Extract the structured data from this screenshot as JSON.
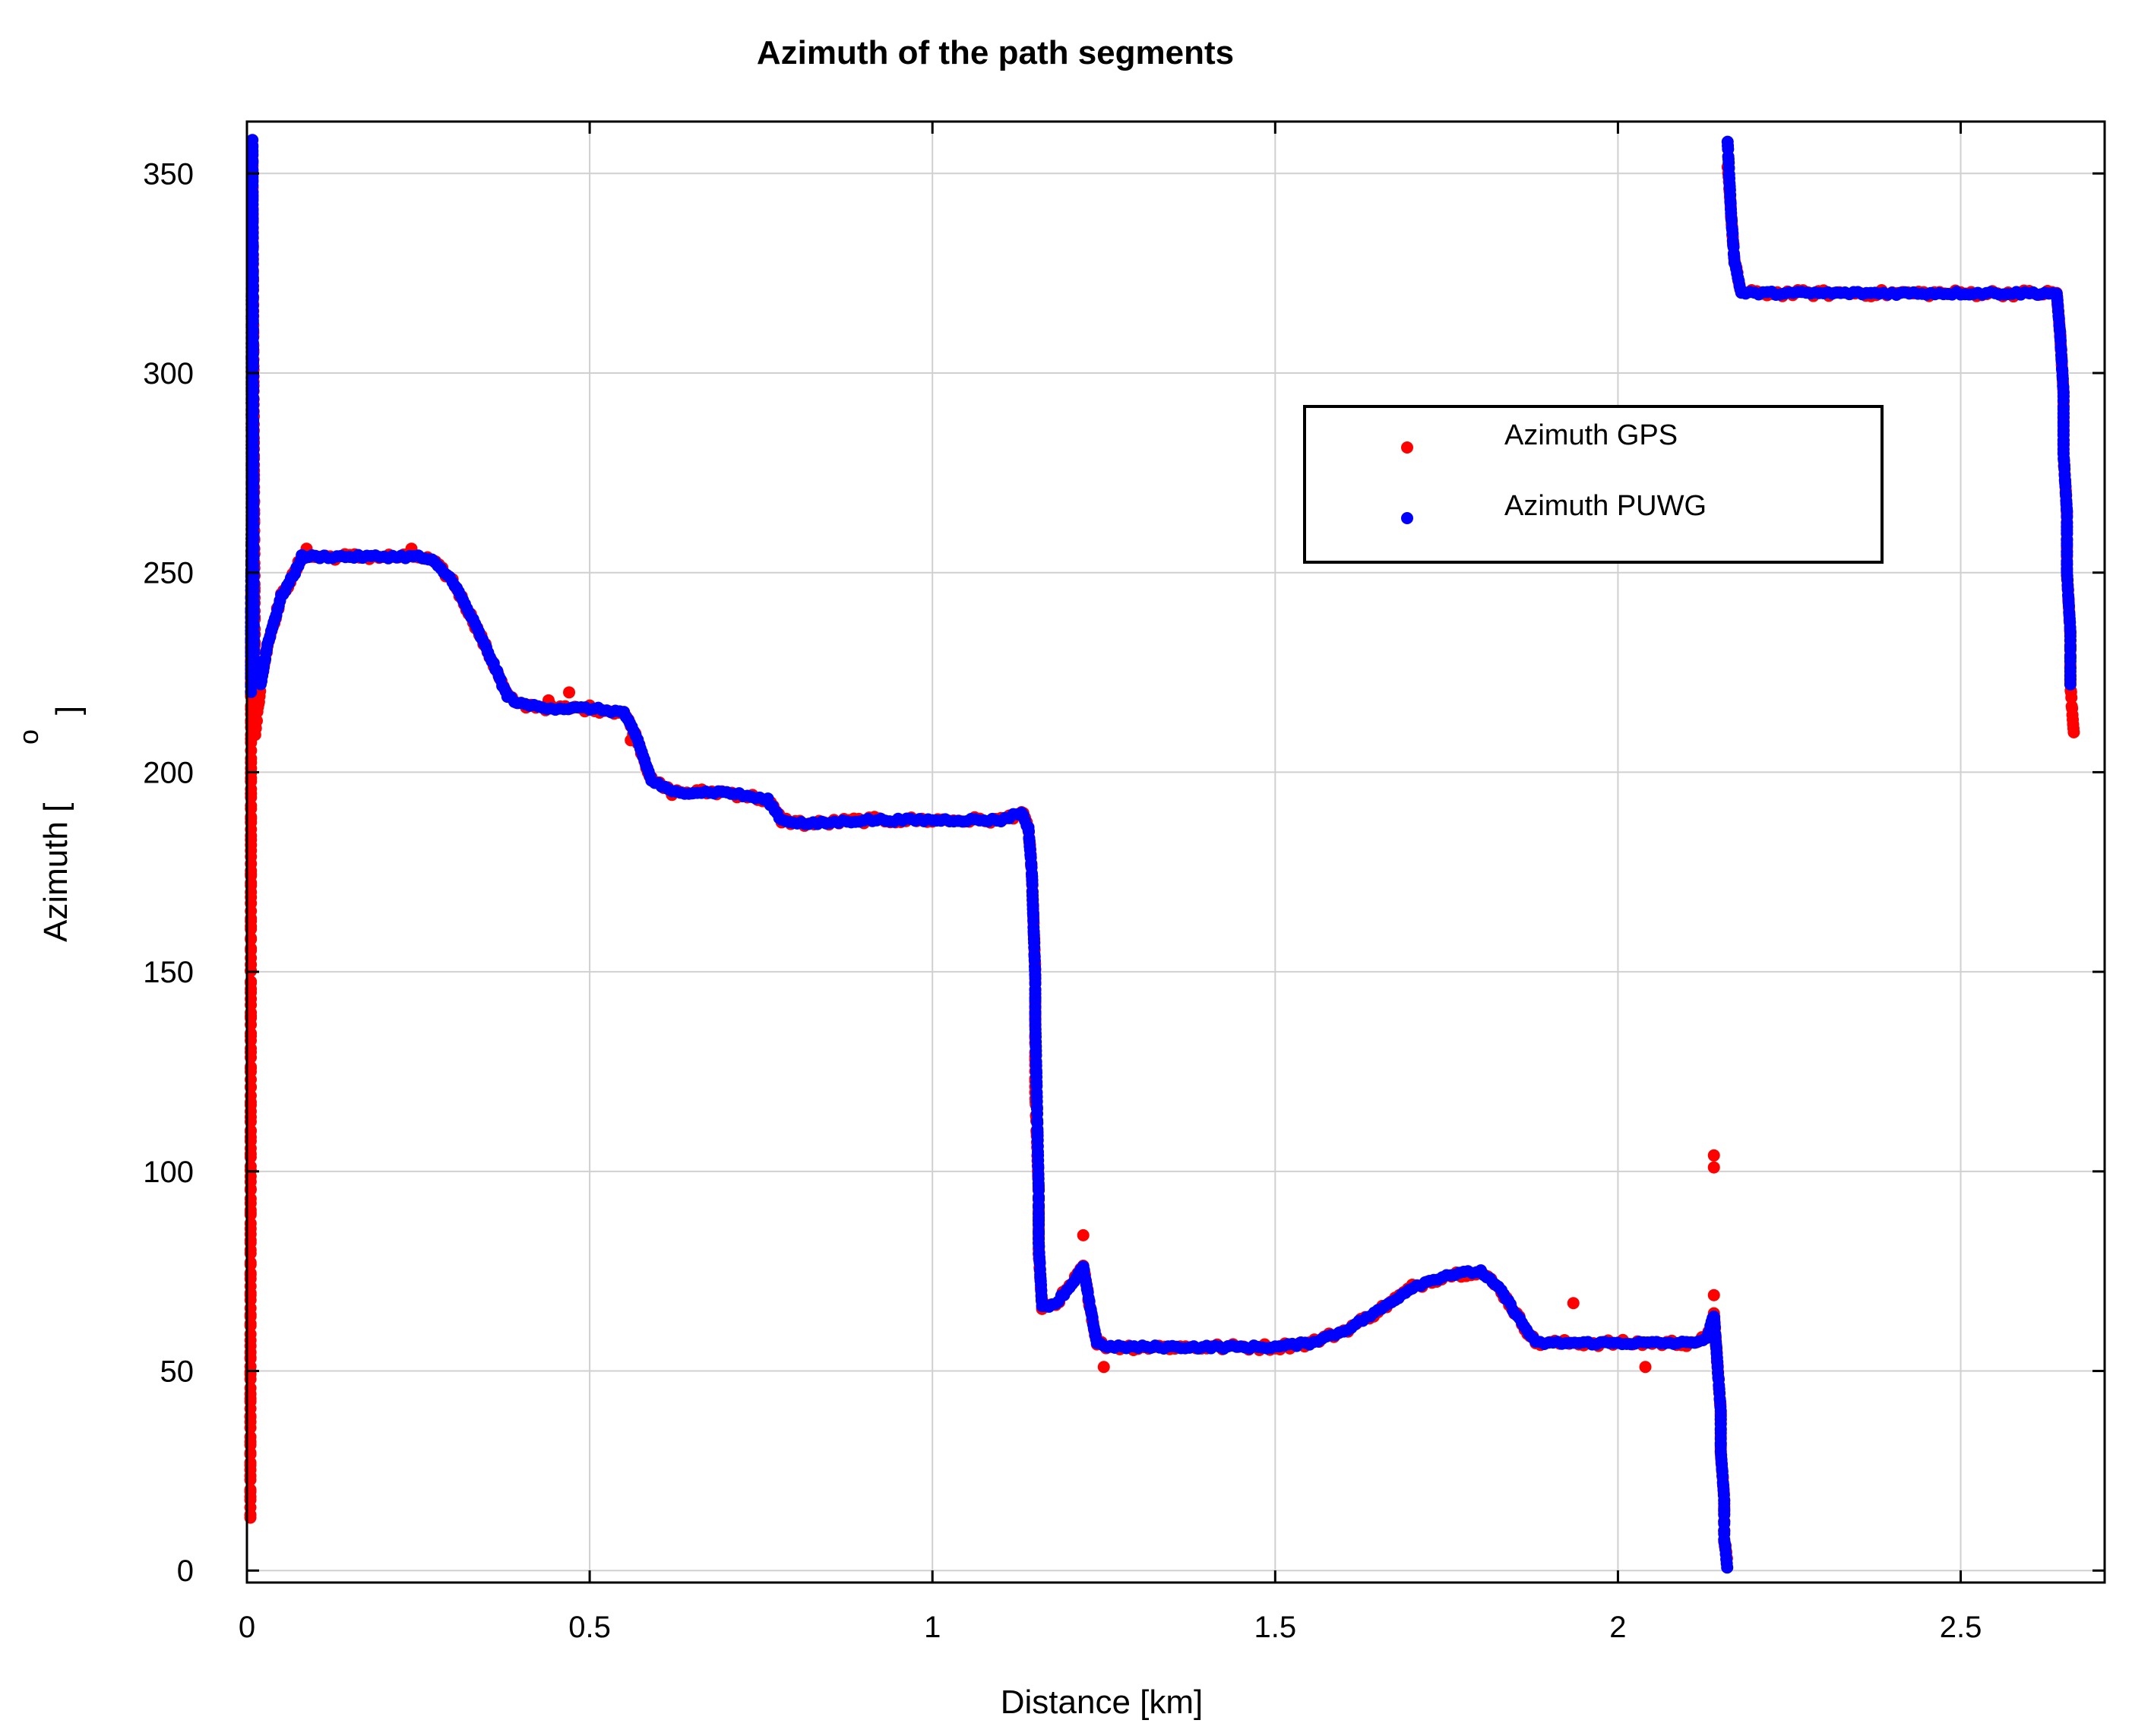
{
  "chart_data": {
    "type": "scatter",
    "title": "Azimuth of the path segments",
    "xlabel": "Distance [km]",
    "ylabel": {
      "prefix": "Azimuth [",
      "superscript": "o",
      "suffix": "]"
    },
    "xlim": [
      0,
      2.71
    ],
    "ylim": [
      -3,
      363
    ],
    "xticks": [
      0,
      0.5,
      1,
      1.5,
      2,
      2.5
    ],
    "xtick_labels": [
      "0",
      "0.5",
      "1",
      "1.5",
      "2",
      "2.5"
    ],
    "yticks": [
      0,
      50,
      100,
      150,
      200,
      250,
      300,
      350
    ],
    "ytick_labels": [
      "0",
      "50",
      "100",
      "150",
      "200",
      "250",
      "300",
      "350"
    ],
    "grid": true,
    "legend_position": "upper-right",
    "series": [
      {
        "name": "Azimuth GPS",
        "color": "#ff0000",
        "path": [
          [
            0.005,
            13
          ],
          [
            0.005,
            26
          ],
          [
            0.006,
            212
          ],
          [
            0.006,
            230
          ],
          [
            0.007,
            262
          ],
          [
            0.007,
            290
          ],
          [
            0.007,
            307
          ],
          [
            0.008,
            335
          ],
          [
            0.008,
            355
          ],
          [
            0.012,
            210
          ],
          [
            0.02,
            222
          ],
          [
            0.03,
            232
          ],
          [
            0.05,
            244
          ],
          [
            0.07,
            250
          ],
          [
            0.08,
            254
          ],
          [
            0.09,
            254
          ],
          [
            0.1,
            254
          ],
          [
            0.15,
            254
          ],
          [
            0.2,
            254
          ],
          [
            0.25,
            254
          ],
          [
            0.27,
            253
          ],
          [
            0.3,
            248
          ],
          [
            0.33,
            238
          ],
          [
            0.36,
            227
          ],
          [
            0.38,
            219
          ],
          [
            0.4,
            217
          ],
          [
            0.45,
            216
          ],
          [
            0.5,
            216
          ],
          [
            0.55,
            215
          ],
          [
            0.57,
            208
          ],
          [
            0.59,
            198
          ],
          [
            0.62,
            195
          ],
          [
            0.7,
            195
          ],
          [
            0.76,
            193
          ],
          [
            0.78,
            188
          ],
          [
            0.82,
            187
          ],
          [
            0.9,
            188
          ],
          [
            1.0,
            188
          ],
          [
            1.1,
            188
          ],
          [
            1.13,
            190
          ],
          [
            1.14,
            186
          ],
          [
            1.145,
            175
          ],
          [
            1.15,
            150
          ],
          [
            1.15,
            120
          ],
          [
            1.155,
            95
          ],
          [
            1.155,
            80
          ],
          [
            1.16,
            66
          ],
          [
            1.18,
            67
          ],
          [
            1.2,
            71
          ],
          [
            1.22,
            76
          ],
          [
            1.23,
            66
          ],
          [
            1.24,
            57
          ],
          [
            1.26,
            56
          ],
          [
            1.3,
            56
          ],
          [
            1.4,
            56
          ],
          [
            1.5,
            56
          ],
          [
            1.55,
            57
          ],
          [
            1.6,
            60
          ],
          [
            1.65,
            65
          ],
          [
            1.7,
            71
          ],
          [
            1.75,
            74
          ],
          [
            1.8,
            75
          ],
          [
            1.83,
            70
          ],
          [
            1.86,
            62
          ],
          [
            1.88,
            57
          ],
          [
            1.95,
            57
          ],
          [
            2.0,
            57
          ],
          [
            2.05,
            57
          ],
          [
            2.1,
            57
          ],
          [
            2.13,
            58
          ],
          [
            2.14,
            64
          ],
          [
            2.145,
            52
          ],
          [
            2.15,
            40
          ],
          [
            2.15,
            30
          ],
          [
            2.155,
            18
          ],
          [
            2.155,
            8
          ],
          [
            2.16,
            2
          ],
          [
            2.16,
            352
          ],
          [
            2.165,
            340
          ],
          [
            2.17,
            328
          ],
          [
            2.18,
            320
          ],
          [
            2.3,
            320
          ],
          [
            2.4,
            320
          ],
          [
            2.5,
            320
          ],
          [
            2.6,
            320
          ],
          [
            2.64,
            320
          ],
          [
            2.645,
            310
          ],
          [
            2.65,
            295
          ],
          [
            2.65,
            280
          ],
          [
            2.655,
            265
          ],
          [
            2.655,
            250
          ],
          [
            2.66,
            235
          ],
          [
            2.66,
            222
          ],
          [
            2.665,
            210
          ]
        ],
        "outliers": [
          [
            0.47,
            220
          ],
          [
            0.44,
            218
          ],
          [
            1.935,
            67
          ],
          [
            2.04,
            51
          ],
          [
            1.25,
            51
          ],
          [
            2.14,
            101
          ],
          [
            2.14,
            104
          ],
          [
            1.22,
            84
          ],
          [
            0.087,
            256
          ],
          [
            0.24,
            256
          ],
          [
            0.56,
            208
          ],
          [
            2.14,
            69
          ],
          [
            0.013,
            211
          ]
        ]
      },
      {
        "name": "Azimuth PUWG",
        "color": "#0000ff",
        "path": [
          [
            0.005,
            17
          ],
          [
            0.006,
            220
          ],
          [
            0.006,
            240
          ],
          [
            0.007,
            263
          ],
          [
            0.007,
            318
          ],
          [
            0.008,
            358
          ],
          [
            0.01,
            226
          ],
          [
            0.02,
            222
          ],
          [
            0.03,
            232
          ],
          [
            0.05,
            244
          ],
          [
            0.07,
            250
          ],
          [
            0.08,
            254
          ],
          [
            0.09,
            254
          ],
          [
            0.1,
            254
          ],
          [
            0.15,
            254
          ],
          [
            0.2,
            254
          ],
          [
            0.25,
            254
          ],
          [
            0.27,
            253
          ],
          [
            0.3,
            248
          ],
          [
            0.33,
            238
          ],
          [
            0.36,
            227
          ],
          [
            0.38,
            219
          ],
          [
            0.4,
            217
          ],
          [
            0.45,
            216
          ],
          [
            0.5,
            216
          ],
          [
            0.55,
            215
          ],
          [
            0.57,
            208
          ],
          [
            0.59,
            198
          ],
          [
            0.62,
            195
          ],
          [
            0.7,
            195
          ],
          [
            0.76,
            193
          ],
          [
            0.78,
            188
          ],
          [
            0.82,
            187
          ],
          [
            0.9,
            188
          ],
          [
            1.0,
            188
          ],
          [
            1.1,
            188
          ],
          [
            1.13,
            190
          ],
          [
            1.14,
            186
          ],
          [
            1.145,
            175
          ],
          [
            1.15,
            148
          ],
          [
            1.15,
            138
          ],
          [
            1.155,
            95
          ],
          [
            1.155,
            82
          ],
          [
            1.16,
            66
          ],
          [
            1.18,
            67
          ],
          [
            1.2,
            71
          ],
          [
            1.22,
            76
          ],
          [
            1.23,
            66
          ],
          [
            1.24,
            57
          ],
          [
            1.26,
            56
          ],
          [
            1.3,
            56
          ],
          [
            1.4,
            56
          ],
          [
            1.5,
            56
          ],
          [
            1.55,
            57
          ],
          [
            1.6,
            60
          ],
          [
            1.65,
            65
          ],
          [
            1.7,
            71
          ],
          [
            1.75,
            74
          ],
          [
            1.8,
            75
          ],
          [
            1.83,
            70
          ],
          [
            1.86,
            62
          ],
          [
            1.88,
            57
          ],
          [
            1.95,
            57
          ],
          [
            2.0,
            57
          ],
          [
            2.05,
            57
          ],
          [
            2.1,
            57
          ],
          [
            2.13,
            58
          ],
          [
            2.14,
            64
          ],
          [
            2.145,
            52
          ],
          [
            2.15,
            40
          ],
          [
            2.15,
            30
          ],
          [
            2.155,
            18
          ],
          [
            2.155,
            8
          ],
          [
            2.16,
            0
          ],
          [
            2.16,
            358
          ],
          [
            2.165,
            340
          ],
          [
            2.17,
            328
          ],
          [
            2.18,
            320
          ],
          [
            2.3,
            320
          ],
          [
            2.4,
            320
          ],
          [
            2.5,
            320
          ],
          [
            2.6,
            320
          ],
          [
            2.64,
            320
          ],
          [
            2.645,
            310
          ],
          [
            2.65,
            295
          ],
          [
            2.65,
            280
          ],
          [
            2.655,
            265
          ],
          [
            2.655,
            250
          ],
          [
            2.66,
            235
          ],
          [
            2.66,
            222
          ]
        ],
        "outliers": []
      }
    ]
  }
}
